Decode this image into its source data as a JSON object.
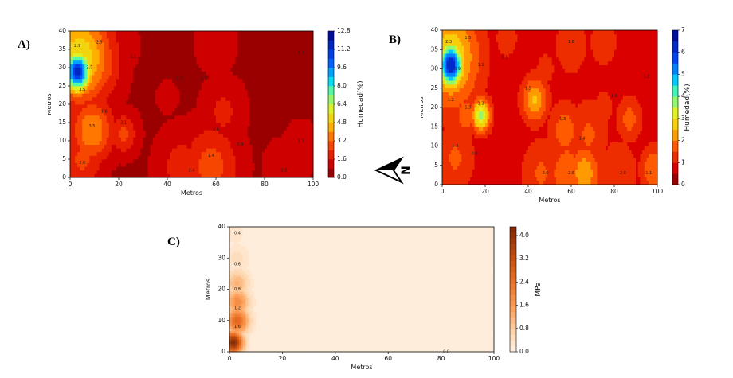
{
  "panels": {
    "A": {
      "letter": "A)"
    },
    "B": {
      "letter": "B)"
    },
    "C": {
      "letter": "C)"
    }
  },
  "north_arrow": {
    "label": "N"
  },
  "chart_data": [
    {
      "type": "heatmap",
      "panel": "A)",
      "xlabel": "Metros",
      "ylabel": "Metros",
      "xlim": [
        0,
        100
      ],
      "ylim": [
        0,
        40
      ],
      "xticks": [
        0,
        20,
        40,
        60,
        80,
        100
      ],
      "yticks": [
        0,
        5,
        10,
        15,
        20,
        25,
        30,
        35,
        40
      ],
      "colorbar": {
        "label": "Humedad(%)",
        "ticks": [
          "0.0",
          "1.6",
          "3.2",
          "4.8",
          "6.4",
          "8.0",
          "9.6",
          "11.2",
          "12.8"
        ],
        "range": [
          0,
          12.8
        ],
        "colormap": "jet_r"
      },
      "base_value": 0.6,
      "hotspots": [
        {
          "x": 3,
          "y": 29,
          "v": 11.5,
          "r": 4
        },
        {
          "x": 4,
          "y": 33,
          "v": 5.5,
          "r": 9
        },
        {
          "x": 8,
          "y": 38,
          "v": 4.0,
          "r": 6
        },
        {
          "x": 10,
          "y": 31,
          "v": 3.6,
          "r": 7
        },
        {
          "x": 9,
          "y": 13,
          "v": 4.0,
          "r": 6
        },
        {
          "x": 5,
          "y": 5,
          "v": 2.6,
          "r": 6
        },
        {
          "x": 22,
          "y": 12,
          "v": 2.6,
          "r": 4
        },
        {
          "x": 58,
          "y": 3,
          "v": 2.8,
          "r": 8
        },
        {
          "x": 46,
          "y": 3,
          "v": 2.0,
          "r": 7
        },
        {
          "x": 63,
          "y": 18,
          "v": 1.8,
          "r": 6
        },
        {
          "x": 95,
          "y": 8,
          "v": 1.4,
          "r": 5
        },
        {
          "x": 60,
          "y": 37,
          "v": 1.3,
          "r": 6
        },
        {
          "x": 20,
          "y": 36,
          "v": 1.2,
          "r": 6
        },
        {
          "x": 87,
          "y": 3,
          "v": 1.4,
          "r": 5
        },
        {
          "x": 40,
          "y": 22,
          "v": 1.3,
          "r": 3
        }
      ],
      "contour_labels": [
        {
          "x": 3,
          "y": 36,
          "t": "2.9"
        },
        {
          "x": 12,
          "y": 37,
          "t": "2.5"
        },
        {
          "x": 8,
          "y": 30,
          "t": "3.7"
        },
        {
          "x": 5,
          "y": 24,
          "t": "3.5"
        },
        {
          "x": 14,
          "y": 18,
          "t": "1.6"
        },
        {
          "x": 9,
          "y": 14,
          "t": "3.5"
        },
        {
          "x": 22,
          "y": 15,
          "t": "2.1"
        },
        {
          "x": 5,
          "y": 4,
          "t": "2.6"
        },
        {
          "x": 26,
          "y": 33,
          "t": "1.1"
        },
        {
          "x": 45,
          "y": 27,
          "t": "1.2"
        },
        {
          "x": 55,
          "y": 27,
          "t": "2.1"
        },
        {
          "x": 60,
          "y": 13,
          "t": "0.8"
        },
        {
          "x": 50,
          "y": 2,
          "t": "2.4"
        },
        {
          "x": 58,
          "y": 6,
          "t": "1.4"
        },
        {
          "x": 70,
          "y": 9,
          "t": "0.9"
        },
        {
          "x": 95,
          "y": 10,
          "t": "1.3"
        },
        {
          "x": 88,
          "y": 2,
          "t": "2.5"
        },
        {
          "x": 95,
          "y": 34,
          "t": "1.2"
        }
      ]
    },
    {
      "type": "heatmap",
      "panel": "B)",
      "xlabel": "Metros",
      "ylabel": "Metros",
      "xlim": [
        0,
        100
      ],
      "ylim": [
        0,
        40
      ],
      "xticks": [
        0,
        20,
        40,
        60,
        80,
        100
      ],
      "yticks": [
        0,
        5,
        10,
        15,
        20,
        25,
        30,
        35,
        40
      ],
      "colorbar": {
        "label": "Humedad(%)",
        "ticks": [
          "0",
          "1",
          "2",
          "3",
          "4",
          "5",
          "6",
          "7"
        ],
        "range": [
          0,
          7
        ],
        "colormap": "jet_r"
      },
      "base_value": 0.7,
      "hotspots": [
        {
          "x": 4,
          "y": 31,
          "v": 6.5,
          "r": 4
        },
        {
          "x": 4,
          "y": 33,
          "v": 3.0,
          "r": 9
        },
        {
          "x": 8,
          "y": 37,
          "v": 2.0,
          "r": 6
        },
        {
          "x": 18,
          "y": 18,
          "v": 3.6,
          "r": 3
        },
        {
          "x": 11,
          "y": 18,
          "v": 1.8,
          "r": 4
        },
        {
          "x": 43,
          "y": 22,
          "v": 2.6,
          "r": 4
        },
        {
          "x": 66,
          "y": 3,
          "v": 2.4,
          "r": 5
        },
        {
          "x": 58,
          "y": 3,
          "v": 1.8,
          "r": 7
        },
        {
          "x": 46,
          "y": 3,
          "v": 1.6,
          "r": 6
        },
        {
          "x": 98,
          "y": 4,
          "v": 2.0,
          "r": 4
        },
        {
          "x": 82,
          "y": 3,
          "v": 1.5,
          "r": 6
        },
        {
          "x": 57,
          "y": 14,
          "v": 1.8,
          "r": 5
        },
        {
          "x": 68,
          "y": 13,
          "v": 1.6,
          "r": 6
        },
        {
          "x": 87,
          "y": 17,
          "v": 1.7,
          "r": 4
        },
        {
          "x": 60,
          "y": 36,
          "v": 1.5,
          "r": 5
        },
        {
          "x": 75,
          "y": 37,
          "v": 1.3,
          "r": 5
        },
        {
          "x": 16,
          "y": 28,
          "v": 1.2,
          "r": 5
        },
        {
          "x": 6,
          "y": 7,
          "v": 1.6,
          "r": 6
        },
        {
          "x": 75,
          "y": 20,
          "v": 1.2,
          "r": 4
        },
        {
          "x": 48,
          "y": 30,
          "v": 1.1,
          "r": 5
        },
        {
          "x": 30,
          "y": 38,
          "v": 1.1,
          "r": 6
        },
        {
          "x": 95,
          "y": 30,
          "v": 1.0,
          "r": 5
        }
      ],
      "contour_labels": [
        {
          "x": 3,
          "y": 37,
          "t": "2.3"
        },
        {
          "x": 12,
          "y": 38,
          "t": "1.5"
        },
        {
          "x": 7,
          "y": 30,
          "t": "3.9"
        },
        {
          "x": 4,
          "y": 22,
          "t": "1.2"
        },
        {
          "x": 12,
          "y": 20,
          "t": "1.5"
        },
        {
          "x": 18,
          "y": 21,
          "t": "1.3"
        },
        {
          "x": 18,
          "y": 31,
          "t": "1.1"
        },
        {
          "x": 6,
          "y": 10,
          "t": "1.3"
        },
        {
          "x": 15,
          "y": 8,
          "t": "0.8"
        },
        {
          "x": 40,
          "y": 25,
          "t": "1.5"
        },
        {
          "x": 29,
          "y": 33,
          "t": "1.1"
        },
        {
          "x": 56,
          "y": 17,
          "t": "1.3"
        },
        {
          "x": 65,
          "y": 12,
          "t": "1.4"
        },
        {
          "x": 80,
          "y": 23,
          "t": "1.0"
        },
        {
          "x": 48,
          "y": 3,
          "t": "2.0"
        },
        {
          "x": 60,
          "y": 3,
          "t": "2.5"
        },
        {
          "x": 84,
          "y": 3,
          "t": "2.0"
        },
        {
          "x": 96,
          "y": 3,
          "t": "1.1"
        },
        {
          "x": 95,
          "y": 28,
          "t": "1.2"
        },
        {
          "x": 60,
          "y": 37,
          "t": "1.8"
        }
      ]
    },
    {
      "type": "heatmap",
      "panel": "C)",
      "xlabel": "Metros",
      "ylabel": "Metros",
      "xlim": [
        0,
        100
      ],
      "ylim": [
        0,
        40
      ],
      "xticks": [
        0,
        20,
        40,
        60,
        80,
        100
      ],
      "yticks": [
        0,
        10,
        20,
        30,
        40
      ],
      "colorbar": {
        "label": "MPa",
        "ticks": [
          "0.0",
          "0.8",
          "1.6",
          "2.4",
          "3.2",
          "4.0"
        ],
        "range": [
          0,
          4.3
        ],
        "colormap": "Oranges"
      },
      "base_value": 0.05,
      "hotspots": [
        {
          "x": 1.5,
          "y": 3,
          "v": 4.2,
          "r": 2.5
        },
        {
          "x": 3,
          "y": 10,
          "v": 2.6,
          "r": 3
        },
        {
          "x": 3,
          "y": 16,
          "v": 1.9,
          "r": 3
        },
        {
          "x": 3,
          "y": 22,
          "v": 1.2,
          "r": 3
        },
        {
          "x": 3,
          "y": 30,
          "v": 0.5,
          "r": 3
        },
        {
          "x": 2,
          "y": 38,
          "v": 0.3,
          "r": 3
        }
      ],
      "contour_labels": [
        {
          "x": 3,
          "y": 38,
          "t": "0.4"
        },
        {
          "x": 3,
          "y": 28,
          "t": "0.6"
        },
        {
          "x": 3,
          "y": 20,
          "t": "0.8"
        },
        {
          "x": 3,
          "y": 14,
          "t": "1.2"
        },
        {
          "x": 3,
          "y": 8,
          "t": "1.6"
        },
        {
          "x": 82,
          "y": 0,
          "t": "0.0"
        }
      ]
    }
  ]
}
